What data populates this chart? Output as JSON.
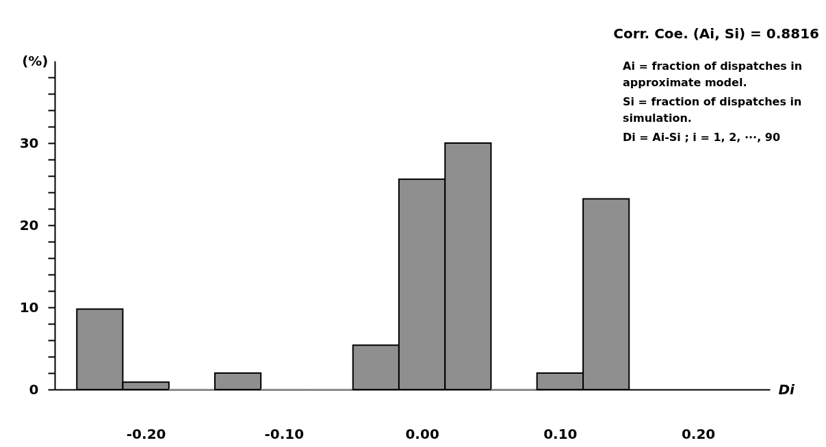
{
  "chart_data": {
    "type": "histogram",
    "bins": [
      -0.25,
      -0.2167,
      -0.1833,
      -0.15,
      -0.1167,
      -0.0833,
      -0.05,
      -0.0167,
      0.0167,
      0.05,
      0.0833,
      0.1167,
      0.15
    ],
    "values": [
      9.8,
      0.9,
      0,
      2.0,
      0,
      0,
      5.4,
      25.6,
      30.0,
      0,
      2.0,
      23.2
    ],
    "color": "#8f8f8f",
    "xlim": [
      -0.266,
      0.252
    ],
    "xticks": [
      {
        "value": -0.2,
        "label": "-0.20"
      },
      {
        "value": -0.1,
        "label": "-0.10"
      },
      {
        "value": 0,
        "label": "0.00"
      },
      {
        "value": 0.1,
        "label": "0.10"
      },
      {
        "value": 0.2,
        "label": "0.20"
      }
    ],
    "ylim": [
      0,
      40
    ],
    "yticks": [
      0,
      {
        "value": 2,
        "label": null
      },
      {
        "value": 4,
        "label": null
      },
      {
        "value": 6,
        "label": null
      },
      {
        "value": 8,
        "label": null
      },
      10,
      {
        "value": 12,
        "label": null
      },
      {
        "value": 14,
        "label": null
      },
      {
        "value": 16,
        "label": null
      },
      {
        "value": 18,
        "label": null
      },
      20,
      {
        "value": 22,
        "label": null
      },
      {
        "value": 24,
        "label": null
      },
      {
        "value": 26,
        "label": null
      },
      {
        "value": 28,
        "label": null
      },
      30,
      {
        "value": 32,
        "label": null
      },
      {
        "value": 34,
        "label": null
      },
      {
        "value": 36,
        "label": null
      },
      {
        "value": 38,
        "label": null
      }
    ],
    "xlabel": "Di",
    "ylabel": "(%)",
    "annotations": [
      "Corr. Coe. (Ai, Si) = 0.8816",
      "Ai = fraction of dispatches in\n       approximate model.",
      "Si = fraction of dispatches in\n       simulation.",
      "Di = Ai-Si ;        i = 1, 2, ···, 90"
    ]
  }
}
